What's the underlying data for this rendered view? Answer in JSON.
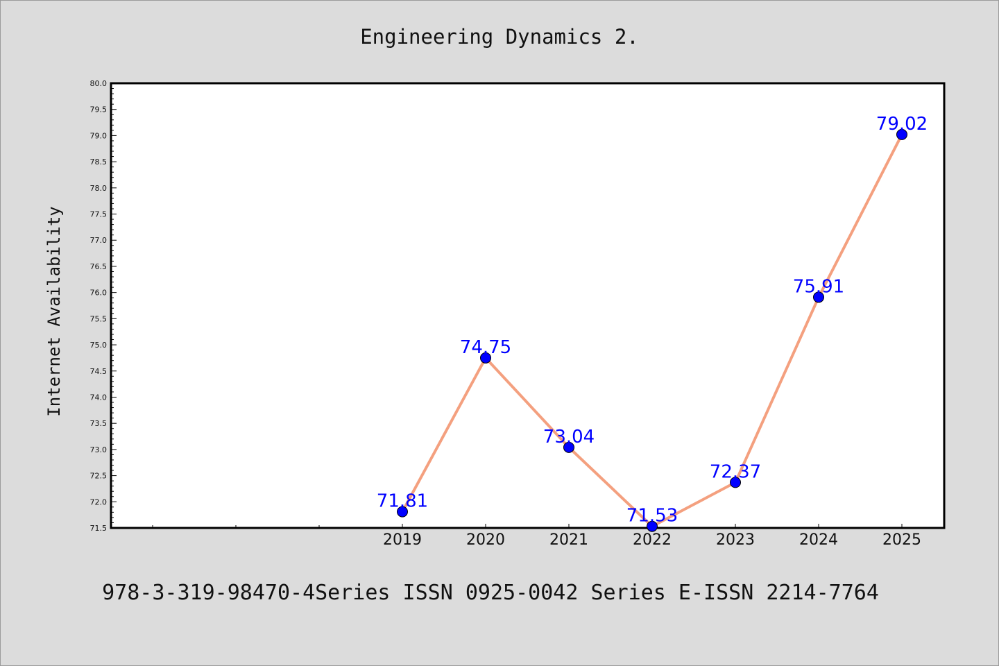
{
  "chart_data": {
    "type": "line",
    "title": "Engineering Dynamics 2.",
    "ylabel": "Internet Availability",
    "xlabel": "",
    "x": [
      "2019",
      "2020",
      "2021",
      "2022",
      "2023",
      "2024",
      "2025"
    ],
    "series": [
      {
        "values": [
          71.81,
          74.75,
          73.04,
          71.53,
          72.37,
          75.91,
          79.02
        ]
      }
    ],
    "ylim": [
      71.5,
      80.0
    ],
    "yticks": [
      "71.5",
      "72.0",
      "72.5",
      "73.0",
      "73.5",
      "74.0",
      "74.5",
      "75.0",
      "75.5",
      "76.0",
      "76.5",
      "77.0",
      "77.5",
      "78.0",
      "78.5",
      "79.0",
      "79.5",
      "80.0"
    ],
    "data_labels": [
      "71.81",
      "74.75",
      "73.04",
      "71.53",
      "72.37",
      "75.91",
      "79.02"
    ],
    "grid": false,
    "colors": {
      "line": "#f4a07f",
      "marker": "#0000ff",
      "label": "#0000ff",
      "background": "#dcdcdc",
      "plot_bg": "#ffffff"
    }
  },
  "footer": "978-3-319-98470-4Series ISSN 0925-0042 Series E-ISSN 2214-7764"
}
